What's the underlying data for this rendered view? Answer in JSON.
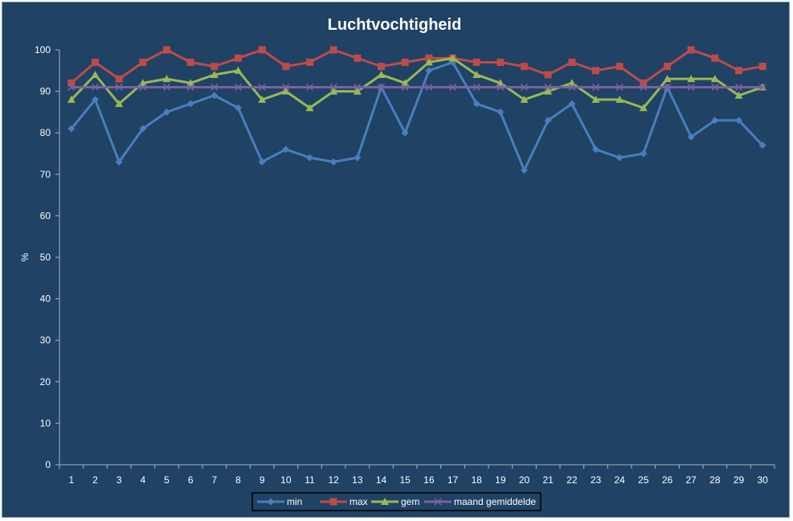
{
  "chart_data": {
    "type": "line",
    "title": "Luchtvochtigheid",
    "xlabel": "",
    "ylabel": "%",
    "ylim": [
      0,
      100
    ],
    "yticks": [
      0,
      10,
      20,
      30,
      40,
      50,
      60,
      70,
      80,
      90,
      100
    ],
    "categories": [
      "1",
      "2",
      "3",
      "4",
      "5",
      "6",
      "7",
      "8",
      "9",
      "10",
      "11",
      "12",
      "13",
      "14",
      "15",
      "16",
      "17",
      "18",
      "19",
      "20",
      "21",
      "22",
      "23",
      "24",
      "25",
      "26",
      "27",
      "28",
      "29",
      "30"
    ],
    "grid": false,
    "legend": "bottom",
    "series": [
      {
        "name": "min",
        "color": "#4a7ebb",
        "marker": "diamond",
        "values": [
          81,
          88,
          73,
          81,
          85,
          87,
          89,
          86,
          73,
          76,
          74,
          73,
          74,
          91,
          80,
          95,
          97,
          87,
          85,
          71,
          83,
          87,
          76,
          74,
          75,
          91,
          79,
          83,
          83,
          77
        ]
      },
      {
        "name": "max",
        "color": "#be4b48",
        "marker": "square",
        "values": [
          92,
          97,
          93,
          97,
          100,
          97,
          96,
          98,
          100,
          96,
          97,
          100,
          98,
          96,
          97,
          98,
          98,
          97,
          97,
          96,
          94,
          97,
          95,
          96,
          92,
          96,
          100,
          98,
          95,
          96
        ]
      },
      {
        "name": "gem",
        "color": "#98b954",
        "marker": "triangle",
        "values": [
          88,
          94,
          87,
          92,
          93,
          92,
          94,
          95,
          88,
          90,
          86,
          90,
          90,
          94,
          92,
          97,
          98,
          94,
          92,
          88,
          90,
          92,
          88,
          88,
          86,
          93,
          93,
          93,
          89,
          91
        ]
      },
      {
        "name": "maand gemiddelde",
        "color": "#7d60a0",
        "marker": "x",
        "values": [
          91,
          91,
          91,
          91,
          91,
          91,
          91,
          91,
          91,
          91,
          91,
          91,
          91,
          91,
          91,
          91,
          91,
          91,
          91,
          91,
          91,
          91,
          91,
          91,
          91,
          91,
          91,
          91,
          91,
          91
        ]
      }
    ]
  }
}
